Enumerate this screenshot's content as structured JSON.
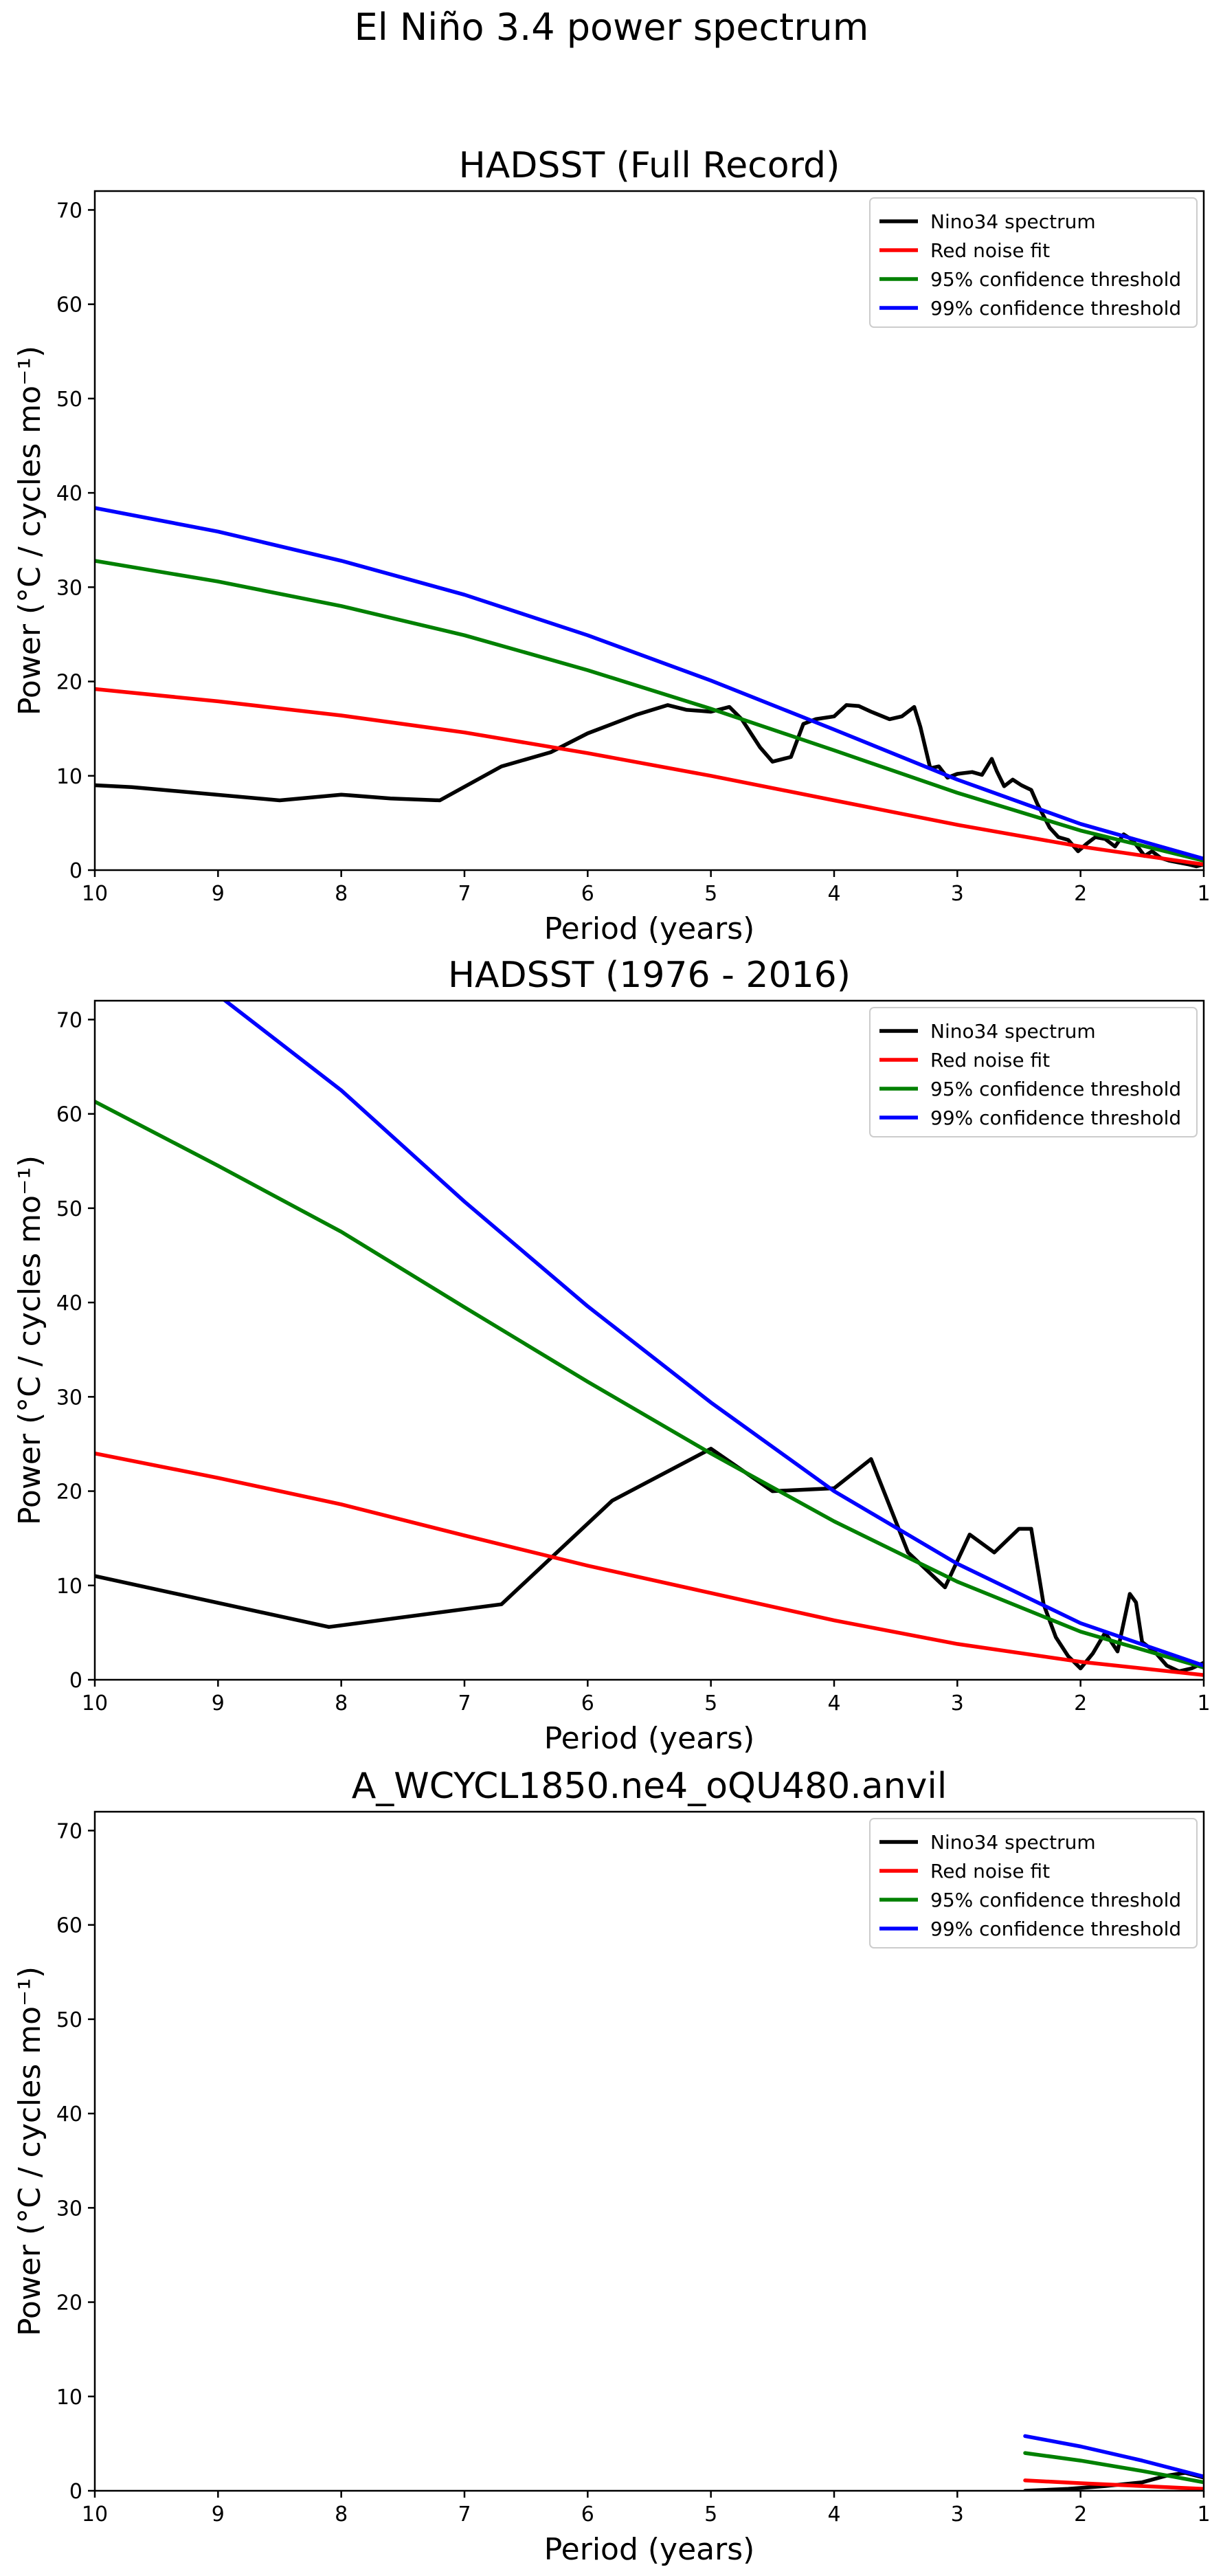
{
  "figure_title": "El Niño 3.4 power spectrum",
  "colors": {
    "spectrum": "#000000",
    "red_noise": "#ff0000",
    "conf95": "#008000",
    "conf99": "#0000ff",
    "axes": "#000000",
    "background": "#ffffff"
  },
  "chart_data": [
    {
      "type": "line",
      "title": "HADSST (Full Record)",
      "xlabel": "Period (years)",
      "ylabel": "Power (°C / cycles mo⁻¹)",
      "xlim": [
        10,
        1
      ],
      "ylim": [
        0,
        72
      ],
      "xticks": [
        10,
        9,
        8,
        7,
        6,
        5,
        4,
        3,
        2,
        1
      ],
      "yticks": [
        0,
        10,
        20,
        30,
        40,
        50,
        60,
        70
      ],
      "grid": false,
      "legend_position": "top-right",
      "series": [
        {
          "name": "Nino34 spectrum",
          "color": "#000000",
          "x": [
            10,
            9.7,
            8.5,
            8,
            7.6,
            7.2,
            6.7,
            6.3,
            6.0,
            5.6,
            5.35,
            5.2,
            5.0,
            4.85,
            4.75,
            4.6,
            4.5,
            4.35,
            4.25,
            4.15,
            4.0,
            3.9,
            3.8,
            3.7,
            3.55,
            3.45,
            3.35,
            3.3,
            3.22,
            3.15,
            3.08,
            3.0,
            2.88,
            2.8,
            2.72,
            2.68,
            2.62,
            2.55,
            2.48,
            2.4,
            2.35,
            2.25,
            2.18,
            2.1,
            2.02,
            1.95,
            1.88,
            1.8,
            1.72,
            1.65,
            1.58,
            1.52,
            1.48,
            1.42,
            1.35,
            1.28,
            1.2,
            1.12,
            1.06,
            1.0
          ],
          "y": [
            9,
            8.8,
            7.4,
            8,
            7.6,
            7.4,
            11,
            12.5,
            14.5,
            16.5,
            17.5,
            17,
            16.8,
            17.3,
            16,
            13,
            11.5,
            12,
            15.5,
            16,
            16.3,
            17.5,
            17.4,
            16.8,
            16,
            16.3,
            17.3,
            15.2,
            10.8,
            11,
            9.8,
            10.2,
            10.4,
            10.1,
            11.8,
            10.5,
            8.9,
            9.6,
            9,
            8.5,
            7,
            4.5,
            3.5,
            3.2,
            2,
            2.8,
            3.5,
            3.3,
            2.5,
            3.8,
            3.2,
            2.2,
            1.5,
            2,
            1.3,
            1,
            0.8,
            0.6,
            0.4,
            0.6
          ]
        },
        {
          "name": "Red noise fit",
          "color": "#ff0000",
          "x": [
            10,
            9,
            8,
            7,
            6,
            5,
            4,
            3,
            2,
            1
          ],
          "y": [
            19.2,
            17.9,
            16.4,
            14.6,
            12.4,
            10.0,
            7.4,
            4.8,
            2.5,
            0.6
          ]
        },
        {
          "name": "95% confidence threshold",
          "color": "#008000",
          "x": [
            10,
            9,
            8,
            7,
            6,
            5,
            4,
            3,
            2,
            1
          ],
          "y": [
            32.8,
            30.6,
            28.0,
            24.9,
            21.2,
            17.1,
            12.7,
            8.2,
            4.2,
            1.0
          ]
        },
        {
          "name": "99% confidence threshold",
          "color": "#0000ff",
          "x": [
            10,
            9,
            8,
            7,
            6,
            5,
            4,
            3,
            2,
            1
          ],
          "y": [
            38.4,
            35.9,
            32.8,
            29.2,
            24.9,
            20.1,
            14.9,
            9.6,
            4.9,
            1.2
          ]
        }
      ]
    },
    {
      "type": "line",
      "title": "HADSST (1976 - 2016)",
      "xlabel": "Period (years)",
      "ylabel": "Power (°C / cycles mo⁻¹)",
      "xlim": [
        10,
        1
      ],
      "ylim": [
        0,
        72
      ],
      "xticks": [
        10,
        9,
        8,
        7,
        6,
        5,
        4,
        3,
        2,
        1
      ],
      "yticks": [
        0,
        10,
        20,
        30,
        40,
        50,
        60,
        70
      ],
      "grid": false,
      "legend_position": "top-right",
      "series": [
        {
          "name": "Nino34 spectrum",
          "color": "#000000",
          "x": [
            10,
            8.1,
            6.7,
            5.8,
            5.0,
            4.5,
            4.0,
            3.7,
            3.4,
            3.1,
            2.9,
            2.7,
            2.5,
            2.4,
            2.3,
            2.2,
            2.1,
            2.0,
            1.9,
            1.8,
            1.7,
            1.6,
            1.55,
            1.5,
            1.45,
            1.4,
            1.3,
            1.2,
            1.1,
            1.0
          ],
          "y": [
            11,
            5.6,
            8,
            19,
            24.5,
            20,
            20.3,
            23.4,
            13.5,
            9.8,
            15.4,
            13.5,
            16,
            16,
            8,
            4.5,
            2.5,
            1.2,
            2.8,
            5,
            3,
            9.1,
            8.2,
            4,
            3.5,
            3,
            1.5,
            0.9,
            1.2,
            1.8
          ]
        },
        {
          "name": "Red noise fit",
          "color": "#ff0000",
          "x": [
            10,
            9,
            8,
            7,
            6,
            5,
            4,
            3,
            2,
            1
          ],
          "y": [
            24.0,
            21.4,
            18.6,
            15.3,
            12.1,
            9.2,
            6.3,
            3.8,
            1.9,
            0.5
          ]
        },
        {
          "name": "95% confidence threshold",
          "color": "#008000",
          "x": [
            10,
            9,
            8,
            7,
            6,
            5,
            4,
            3,
            2,
            1
          ],
          "y": [
            61.3,
            54.5,
            47.5,
            39.5,
            31.6,
            24.0,
            16.8,
            10.4,
            5.1,
            1.3
          ]
        },
        {
          "name": "99% confidence threshold",
          "color": "#0000ff",
          "x": [
            10,
            9.5,
            9,
            8,
            7,
            6,
            5,
            4,
            3,
            2,
            1
          ],
          "y": [
            80.0,
            76.5,
            72.6,
            62.5,
            50.7,
            39.6,
            29.4,
            20.0,
            12.3,
            6.0,
            1.5
          ]
        }
      ]
    },
    {
      "type": "line",
      "title": "A_WCYCL1850.ne4_oQU480.anvil",
      "xlabel": "Period (years)",
      "ylabel": "Power (°C / cycles mo⁻¹)",
      "xlim": [
        10,
        1
      ],
      "ylim": [
        0,
        72
      ],
      "xticks": [
        10,
        9,
        8,
        7,
        6,
        5,
        4,
        3,
        2,
        1
      ],
      "yticks": [
        0,
        10,
        20,
        30,
        40,
        50,
        60,
        70
      ],
      "grid": false,
      "legend_position": "top-right",
      "series": [
        {
          "name": "Nino34 spectrum",
          "color": "#000000",
          "x": [
            2.45,
            2.1,
            1.8,
            1.5,
            1.3,
            1.15,
            1.0
          ],
          "y": [
            0.0,
            0.2,
            0.5,
            0.9,
            1.6,
            1.9,
            1.4
          ]
        },
        {
          "name": "Red noise fit",
          "color": "#ff0000",
          "x": [
            2.45,
            2,
            1.5,
            1.0
          ],
          "y": [
            1.1,
            0.8,
            0.5,
            0.2
          ]
        },
        {
          "name": "95% confidence threshold",
          "color": "#008000",
          "x": [
            2.45,
            2,
            1.5,
            1.0
          ],
          "y": [
            4.0,
            3.2,
            2.1,
            0.9
          ]
        },
        {
          "name": "99% confidence threshold",
          "color": "#0000ff",
          "x": [
            2.45,
            2,
            1.5,
            1.0
          ],
          "y": [
            5.8,
            4.7,
            3.2,
            1.5
          ]
        }
      ]
    }
  ]
}
